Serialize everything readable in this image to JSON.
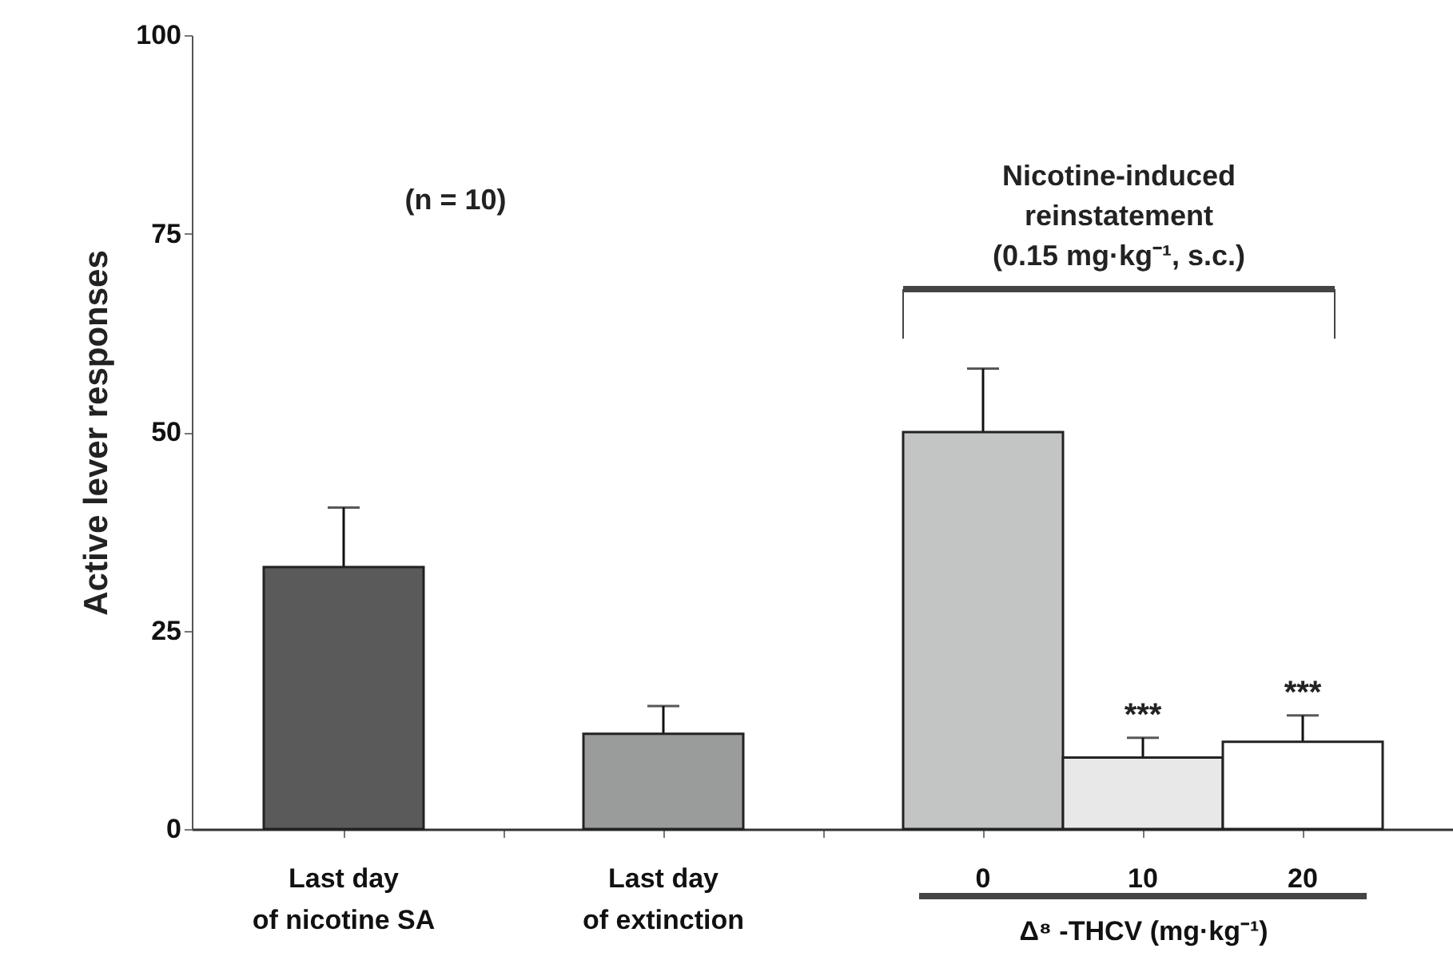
{
  "chart_data": {
    "type": "bar",
    "ylabel": "Active lever responses",
    "xlabel": "Δ⁸ -THCV (mg·kg⁻¹)",
    "categories": [
      "Last day\nof nicotine SA",
      null,
      "Last day\nof extinction",
      null,
      "0",
      "10",
      "20"
    ],
    "values": [
      33,
      null,
      12,
      null,
      50,
      9,
      11
    ],
    "errors": [
      7.5,
      null,
      3.5,
      null,
      8,
      2.5,
      3.3
    ],
    "colors": [
      "#5a5a5a",
      null,
      "#9a9c9b",
      null,
      "#c3c5c4",
      "#e8e8e8",
      "#ffffff"
    ],
    "ylim": [
      0,
      100
    ],
    "yticks": [
      0,
      25,
      50,
      75,
      100
    ],
    "annotations": [
      "(n = 10)",
      "Nicotine-induced\nreinstatement\n(0.15 mg·kg⁻¹, s.c.)",
      {
        "text": "***",
        "x": "10",
        "y": 11.5
      },
      {
        "text": "***",
        "x": "20",
        "y": 14.3
      }
    ]
  }
}
